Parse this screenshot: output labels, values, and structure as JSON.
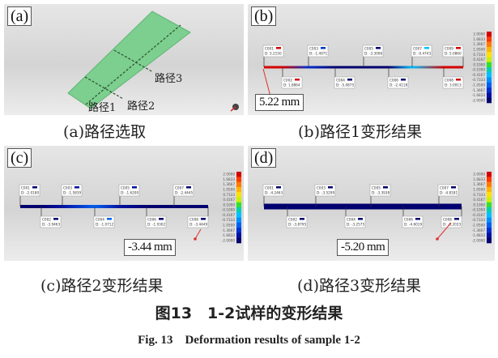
{
  "figure": {
    "title_cn": "图13　1-2试样的变形结果",
    "title_en": "Fig. 13　Deformation results of sample 1-2"
  },
  "colorbar": {
    "ticks": [
      "2.0000",
      "1.6833",
      "1.3667",
      "1.0500",
      "0.7333",
      "0.4167",
      "0.1000",
      "-0.1000",
      "-0.4167",
      "-0.7333",
      "-1.0500",
      "-1.3667",
      "-1.6833",
      "-2.0000"
    ],
    "colors": [
      "#d40000",
      "#ff3a00",
      "#ff7a00",
      "#ffb400",
      "#ffe000",
      "#c8f000",
      "#30e030",
      "#00d0b0",
      "#00c0ff",
      "#0090ff",
      "#0060f0",
      "#0030d0",
      "#0010a0",
      "#000070"
    ]
  },
  "panels": {
    "a": {
      "tag": "(a)",
      "caption": "(a)路径选取",
      "path_labels": [
        "路径1",
        "路径2",
        "路径3"
      ],
      "plate_color": "#7ccf8e"
    },
    "b": {
      "tag": "(b)",
      "caption": "(b)路径1变形结果",
      "measure": "5.22 mm",
      "points": [
        {
          "id": "C001",
          "d": "D: 5.2150",
          "v": 5.215
        },
        {
          "id": "C002",
          "d": "D: 1.8864",
          "v": 1.8864
        },
        {
          "id": "C003",
          "d": "D: -1.4971",
          "v": -1.4971
        },
        {
          "id": "C004",
          "d": "D: -5.0875",
          "v": -5.0875
        },
        {
          "id": "C005",
          "d": "D: -3.3006",
          "v": -3.3006
        },
        {
          "id": "C006",
          "d": "D: -2.4118",
          "v": -2.4118
        },
        {
          "id": "C007",
          "d": "D: -0.4743",
          "v": -0.4743
        },
        {
          "id": "C008",
          "d": "D: 3.0913",
          "v": 3.0913
        },
        {
          "id": "C009",
          "d": "D: 5.0860",
          "v": 5.086
        }
      ]
    },
    "c": {
      "tag": "(c)",
      "caption": "(c)路径2变形结果",
      "measure": "-3.44 mm",
      "points": [
        {
          "id": "C001",
          "d": "D: -2.0180",
          "v": -2.018
        },
        {
          "id": "C002",
          "d": "D: -3.9463",
          "v": -3.9463
        },
        {
          "id": "C003",
          "d": "D: -1.5839",
          "v": -1.5839
        },
        {
          "id": "C004",
          "d": "D: -1.0712",
          "v": -1.0712
        },
        {
          "id": "C005",
          "d": "D: -1.6200",
          "v": -1.62
        },
        {
          "id": "C006",
          "d": "D: -1.9302",
          "v": -1.9302
        },
        {
          "id": "C007",
          "d": "D: -2.4445",
          "v": -2.4445
        },
        {
          "id": "C008",
          "d": "D: -3.4449",
          "v": -3.4449
        }
      ]
    },
    "d": {
      "tag": "(d)",
      "caption": "(d)路径3变形结果",
      "measure": "-5.20 mm",
      "points": [
        {
          "id": "C001",
          "d": "D: -4.2463",
          "v": -4.2463
        },
        {
          "id": "C002",
          "d": "D: -3.8795",
          "v": -3.8795
        },
        {
          "id": "C003",
          "d": "D: -3.5299",
          "v": -3.5299
        },
        {
          "id": "C004",
          "d": "D: -3.2575",
          "v": -3.2575
        },
        {
          "id": "C005",
          "d": "D: -3.3938",
          "v": -3.3938
        },
        {
          "id": "C006",
          "d": "D: -4.6019",
          "v": -4.6019
        },
        {
          "id": "C007",
          "d": "D: -4.8181",
          "v": -4.8181
        },
        {
          "id": "C008",
          "d": "D: -5.2033",
          "v": -5.2033
        }
      ]
    }
  }
}
